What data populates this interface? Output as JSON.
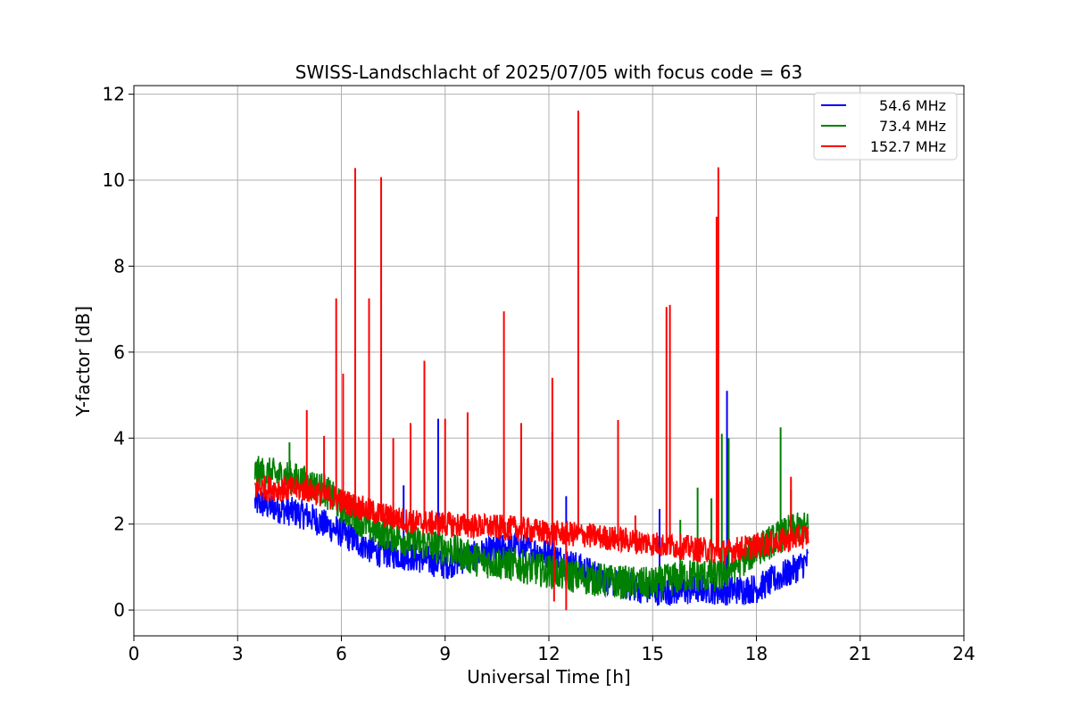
{
  "chart_data": {
    "type": "line",
    "title": "SWISS-Landschlacht of 2025/07/05 with focus code = 63",
    "xlabel": "Universal Time [h]",
    "ylabel": "Y-factor [dB]",
    "xlim": [
      0,
      24
    ],
    "ylim": [
      -0.6,
      12.2
    ],
    "xticks": [
      0,
      3,
      6,
      9,
      12,
      15,
      18,
      21,
      24
    ],
    "yticks": [
      0,
      2,
      4,
      6,
      8,
      10,
      12
    ],
    "grid": true,
    "legend_position": "top-right",
    "series": [
      {
        "name": "54.6 MHz",
        "color": "#0000ff",
        "baseline": [
          [
            3.5,
            2.5
          ],
          [
            5.0,
            2.2
          ],
          [
            6.0,
            1.8
          ],
          [
            7.0,
            1.35
          ],
          [
            8.0,
            1.25
          ],
          [
            9.0,
            1.05
          ],
          [
            10.0,
            1.3
          ],
          [
            11.0,
            1.5
          ],
          [
            12.0,
            1.3
          ],
          [
            13.0,
            0.95
          ],
          [
            14.0,
            0.6
          ],
          [
            15.0,
            0.45
          ],
          [
            16.0,
            0.45
          ],
          [
            16.5,
            0.5
          ],
          [
            17.0,
            0.45
          ],
          [
            18.0,
            0.5
          ],
          [
            19.0,
            0.9
          ],
          [
            19.5,
            1.15
          ]
        ],
        "band": 0.35,
        "spikes": [
          [
            7.8,
            2.9
          ],
          [
            8.8,
            4.45
          ],
          [
            12.1,
            4.15
          ],
          [
            12.5,
            2.65
          ],
          [
            15.2,
            2.35
          ],
          [
            17.15,
            5.1
          ]
        ]
      },
      {
        "name": "73.4 MHz",
        "color": "#008000",
        "baseline": [
          [
            3.5,
            3.2
          ],
          [
            4.5,
            3.1
          ],
          [
            5.5,
            2.8
          ],
          [
            6.0,
            2.4
          ],
          [
            7.0,
            1.85
          ],
          [
            8.0,
            1.6
          ],
          [
            9.0,
            1.45
          ],
          [
            10.0,
            1.15
          ],
          [
            11.0,
            1.05
          ],
          [
            12.0,
            0.9
          ],
          [
            13.0,
            0.75
          ],
          [
            14.0,
            0.65
          ],
          [
            15.0,
            0.6
          ],
          [
            16.0,
            0.8
          ],
          [
            17.0,
            0.8
          ],
          [
            18.0,
            1.4
          ],
          [
            19.0,
            1.85
          ],
          [
            19.5,
            1.9
          ]
        ],
        "band": 0.4,
        "spikes": [
          [
            4.5,
            3.9
          ],
          [
            15.8,
            2.1
          ],
          [
            16.3,
            2.85
          ],
          [
            16.7,
            2.6
          ],
          [
            17.0,
            4.1
          ],
          [
            17.2,
            4.0
          ],
          [
            18.7,
            4.25
          ],
          [
            19.0,
            2.8
          ]
        ]
      },
      {
        "name": "152.7 MHz",
        "color": "#ff0000",
        "baseline": [
          [
            3.5,
            2.85
          ],
          [
            5.0,
            2.8
          ],
          [
            6.0,
            2.55
          ],
          [
            7.0,
            2.25
          ],
          [
            8.0,
            2.05
          ],
          [
            9.0,
            2.0
          ],
          [
            10.0,
            1.95
          ],
          [
            11.0,
            1.9
          ],
          [
            12.0,
            1.8
          ],
          [
            13.0,
            1.75
          ],
          [
            14.0,
            1.65
          ],
          [
            15.0,
            1.55
          ],
          [
            16.0,
            1.45
          ],
          [
            17.0,
            1.35
          ],
          [
            18.0,
            1.5
          ],
          [
            19.0,
            1.65
          ],
          [
            19.5,
            1.75
          ]
        ],
        "band": 0.3,
        "spikes": [
          [
            5.0,
            4.65
          ],
          [
            5.5,
            4.05
          ],
          [
            5.85,
            7.25
          ],
          [
            6.05,
            5.5
          ],
          [
            6.4,
            10.28
          ],
          [
            6.8,
            7.25
          ],
          [
            7.15,
            10.07
          ],
          [
            7.5,
            4.0
          ],
          [
            8.0,
            4.35
          ],
          [
            8.4,
            5.8
          ],
          [
            9.0,
            4.45
          ],
          [
            9.65,
            4.6
          ],
          [
            10.7,
            6.95
          ],
          [
            11.2,
            4.35
          ],
          [
            12.1,
            5.4
          ],
          [
            12.85,
            11.62
          ],
          [
            14.0,
            4.42
          ],
          [
            14.5,
            2.2
          ],
          [
            15.4,
            7.05
          ],
          [
            15.5,
            7.1
          ],
          [
            16.9,
            10.3
          ],
          [
            16.85,
            9.15
          ],
          [
            19.0,
            3.1
          ]
        ],
        "dips": [
          [
            12.15,
            0.2
          ],
          [
            12.5,
            0.0
          ]
        ]
      }
    ]
  }
}
